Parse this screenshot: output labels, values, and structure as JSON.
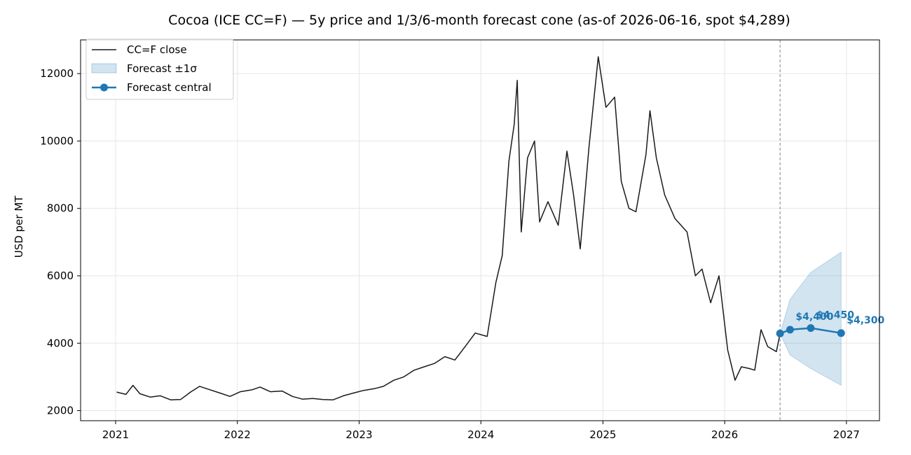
{
  "chart_data": {
    "type": "line",
    "title": "Cocoa (ICE CC=F) — 5y price and 1/3/6-month forecast cone (as-of 2026-06-16, spot $4,289)",
    "xlabel": "",
    "ylabel": "USD per MT",
    "x_ticks": [
      "2021",
      "2022",
      "2023",
      "2024",
      "2025",
      "2026",
      "2027"
    ],
    "y_ticks": [
      2000,
      4000,
      6000,
      8000,
      10000,
      12000
    ],
    "xlim": [
      "2020-09-18",
      "2027-04-10"
    ],
    "ylim": [
      1700,
      13000
    ],
    "grid": true,
    "legend_position": "upper-left",
    "legend": [
      "CC=F close",
      "Forecast ±1σ",
      "Forecast central"
    ],
    "as_of": "2026-06-16",
    "series": [
      {
        "name": "CC=F close",
        "color": "#1a1a1a",
        "points": [
          [
            "2021-01-04",
            2550
          ],
          [
            "2021-02-01",
            2480
          ],
          [
            "2021-02-22",
            2750
          ],
          [
            "2021-03-15",
            2500
          ],
          [
            "2021-04-15",
            2400
          ],
          [
            "2021-05-15",
            2440
          ],
          [
            "2021-06-15",
            2320
          ],
          [
            "2021-07-15",
            2330
          ],
          [
            "2021-08-15",
            2560
          ],
          [
            "2021-09-10",
            2720
          ],
          [
            "2021-10-10",
            2620
          ],
          [
            "2021-11-10",
            2520
          ],
          [
            "2021-12-10",
            2420
          ],
          [
            "2022-01-10",
            2560
          ],
          [
            "2022-02-15",
            2620
          ],
          [
            "2022-03-10",
            2700
          ],
          [
            "2022-04-10",
            2560
          ],
          [
            "2022-05-15",
            2580
          ],
          [
            "2022-06-15",
            2420
          ],
          [
            "2022-07-15",
            2340
          ],
          [
            "2022-08-15",
            2360
          ],
          [
            "2022-09-15",
            2330
          ],
          [
            "2022-10-15",
            2320
          ],
          [
            "2022-11-15",
            2440
          ],
          [
            "2022-12-15",
            2520
          ],
          [
            "2023-01-15",
            2600
          ],
          [
            "2023-02-15",
            2650
          ],
          [
            "2023-03-15",
            2720
          ],
          [
            "2023-04-15",
            2900
          ],
          [
            "2023-05-15",
            3000
          ],
          [
            "2023-06-15",
            3200
          ],
          [
            "2023-07-15",
            3300
          ],
          [
            "2023-08-15",
            3400
          ],
          [
            "2023-09-15",
            3600
          ],
          [
            "2023-10-15",
            3500
          ],
          [
            "2023-11-15",
            3900
          ],
          [
            "2023-12-15",
            4300
          ],
          [
            "2024-01-20",
            4200
          ],
          [
            "2024-02-15",
            5800
          ],
          [
            "2024-03-05",
            6600
          ],
          [
            "2024-03-25",
            9400
          ],
          [
            "2024-04-10",
            10500
          ],
          [
            "2024-04-19",
            11800
          ],
          [
            "2024-05-01",
            7300
          ],
          [
            "2024-05-20",
            9500
          ],
          [
            "2024-06-10",
            10000
          ],
          [
            "2024-06-25",
            7600
          ],
          [
            "2024-07-20",
            8200
          ],
          [
            "2024-08-20",
            7500
          ],
          [
            "2024-09-15",
            9700
          ],
          [
            "2024-10-05",
            8400
          ],
          [
            "2024-10-25",
            6800
          ],
          [
            "2024-11-20",
            9800
          ],
          [
            "2024-12-18",
            12500
          ],
          [
            "2025-01-10",
            11000
          ],
          [
            "2025-02-05",
            11300
          ],
          [
            "2025-02-25",
            8800
          ],
          [
            "2025-03-20",
            8000
          ],
          [
            "2025-04-10",
            7900
          ],
          [
            "2025-05-10",
            9600
          ],
          [
            "2025-05-22",
            10900
          ],
          [
            "2025-06-10",
            9500
          ],
          [
            "2025-07-05",
            8400
          ],
          [
            "2025-08-05",
            7700
          ],
          [
            "2025-09-10",
            7300
          ],
          [
            "2025-10-05",
            6000
          ],
          [
            "2025-10-25",
            6200
          ],
          [
            "2025-11-20",
            5200
          ],
          [
            "2025-12-15",
            6000
          ],
          [
            "2026-01-10",
            3800
          ],
          [
            "2026-02-01",
            2900
          ],
          [
            "2026-02-20",
            3300
          ],
          [
            "2026-03-15",
            3250
          ],
          [
            "2026-04-01",
            3200
          ],
          [
            "2026-04-20",
            4400
          ],
          [
            "2026-05-10",
            3900
          ],
          [
            "2026-06-05",
            3750
          ],
          [
            "2026-06-16",
            4289
          ]
        ]
      },
      {
        "name": "Forecast central",
        "color": "#1f77b4",
        "points": [
          [
            "2026-06-16",
            4289
          ],
          [
            "2026-07-16",
            4400
          ],
          [
            "2026-09-16",
            4450
          ],
          [
            "2026-12-16",
            4300
          ]
        ],
        "labels": [
          "$4,400",
          "$4,450",
          "$4,300"
        ]
      }
    ],
    "band": {
      "name": "Forecast ±1σ",
      "color": "#1f77b4",
      "x": [
        "2026-06-16",
        "2026-07-16",
        "2026-09-16",
        "2026-12-16"
      ],
      "lower": [
        4289,
        3650,
        3250,
        2750
      ],
      "upper": [
        4289,
        5300,
        6100,
        6700
      ]
    }
  }
}
